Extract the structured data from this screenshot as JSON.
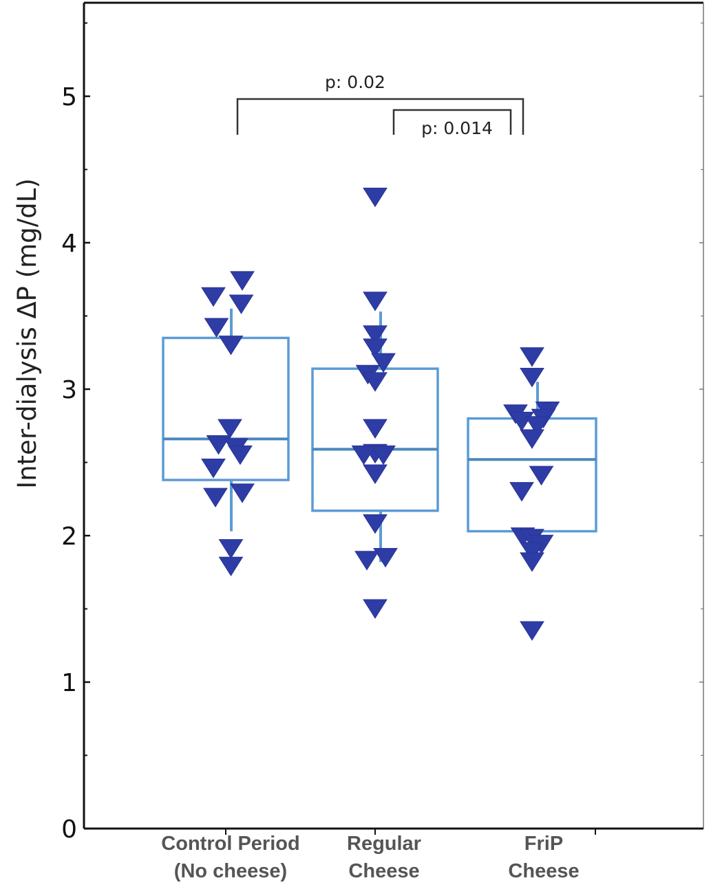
{
  "chart_data": {
    "type": "box",
    "ylabel": "Inter-dialysis ΔP (mg/dL)",
    "xlabel": "",
    "ylim": [
      0,
      5.6
    ],
    "yticks": [
      "0",
      "1",
      "2",
      "3",
      "4",
      "5"
    ],
    "grid": false,
    "categories": [
      {
        "line1": "Control Period",
        "line2": "(No cheese)"
      },
      {
        "line1": "Regular",
        "line2": "Cheese"
      },
      {
        "line1": "FriP",
        "line2": "Cheese"
      }
    ],
    "boxes": [
      {
        "q1": 2.38,
        "median": 2.66,
        "q3": 3.35,
        "whisker_low": 2.03,
        "whisker_high": 3.55
      },
      {
        "q1": 2.17,
        "median": 2.59,
        "q3": 3.14,
        "whisker_low": 1.82,
        "whisker_high": 3.53
      },
      {
        "q1": 2.03,
        "median": 2.52,
        "q3": 2.8,
        "whisker_low": 1.9,
        "whisker_high": 3.05
      }
    ],
    "points": [
      [
        {
          "y": 3.74,
          "dx": 0.16
        },
        {
          "y": 3.63,
          "dx": -0.12
        },
        {
          "y": 3.58,
          "dx": 0.15
        },
        {
          "y": 3.42,
          "dx": -0.09
        },
        {
          "y": 3.3,
          "dx": 0.05
        },
        {
          "y": 2.73,
          "dx": 0.04
        },
        {
          "y": 2.62,
          "dx": -0.07
        },
        {
          "y": 2.6,
          "dx": 0.1
        },
        {
          "y": 2.55,
          "dx": 0.14
        },
        {
          "y": 2.46,
          "dx": -0.12
        },
        {
          "y": 2.29,
          "dx": 0.16
        },
        {
          "y": 2.26,
          "dx": -0.1
        },
        {
          "y": 1.91,
          "dx": 0.05
        },
        {
          "y": 1.79,
          "dx": 0.05
        }
      ],
      [
        {
          "y": 4.31,
          "dx": 0.0
        },
        {
          "y": 3.6,
          "dx": 0.0
        },
        {
          "y": 3.37,
          "dx": 0.0
        },
        {
          "y": 3.28,
          "dx": 0.0
        },
        {
          "y": 3.18,
          "dx": 0.08
        },
        {
          "y": 3.1,
          "dx": -0.07
        },
        {
          "y": 3.05,
          "dx": 0.0
        },
        {
          "y": 2.73,
          "dx": 0.0
        },
        {
          "y": 2.56,
          "dx": 0.0
        },
        {
          "y": 2.55,
          "dx": -0.11
        },
        {
          "y": 2.55,
          "dx": 0.08
        },
        {
          "y": 2.42,
          "dx": 0.0
        },
        {
          "y": 2.08,
          "dx": 0.0
        },
        {
          "y": 1.85,
          "dx": 0.1
        },
        {
          "y": 1.83,
          "dx": -0.08
        },
        {
          "y": 1.5,
          "dx": 0.0
        }
      ],
      [
        {
          "y": 3.22,
          "dx": 0.0
        },
        {
          "y": 3.08,
          "dx": 0.0
        },
        {
          "y": 2.85,
          "dx": 0.15
        },
        {
          "y": 2.83,
          "dx": -0.16
        },
        {
          "y": 2.8,
          "dx": 0.11
        },
        {
          "y": 2.78,
          "dx": -0.1
        },
        {
          "y": 2.75,
          "dx": 0.05
        },
        {
          "y": 2.66,
          "dx": 0.0
        },
        {
          "y": 2.41,
          "dx": 0.09
        },
        {
          "y": 2.3,
          "dx": -0.1
        },
        {
          "y": 1.99,
          "dx": -0.09
        },
        {
          "y": 1.98,
          "dx": 0.0
        },
        {
          "y": 1.94,
          "dx": 0.09
        },
        {
          "y": 1.89,
          "dx": 0.0
        },
        {
          "y": 1.82,
          "dx": 0.0
        },
        {
          "y": 1.35,
          "dx": 0.0
        }
      ]
    ],
    "brackets": [
      {
        "from": 0,
        "to": 2,
        "label": "p: 0.02"
      },
      {
        "from": 1,
        "to": 2,
        "label": "p: 0.014"
      }
    ],
    "colors": {
      "box": "#5b9bd5",
      "marker": "#2e3ca6",
      "axis": "#111111",
      "bracket": "#333333"
    }
  }
}
